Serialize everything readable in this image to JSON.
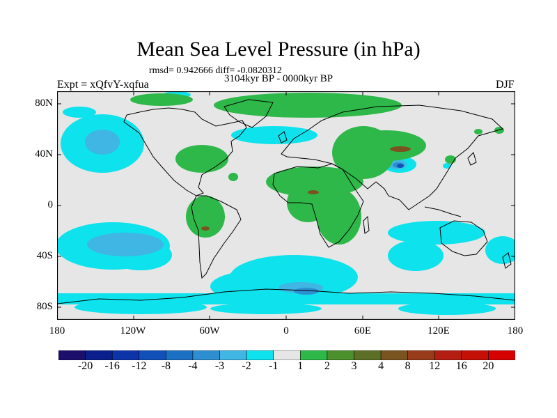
{
  "header": {
    "title": "Mean Sea Level Pressure (in hPa)",
    "stats": "rmsd= 0.942666 diff= -0.0820312",
    "period": "3104kyr BP - 0000kyr BP",
    "experiment": "Expt = xQfvY-xqfua",
    "season": "DJF"
  },
  "axes": {
    "y_ticks": [
      "80N",
      "40N",
      "0",
      "40S",
      "80S"
    ],
    "x_ticks": [
      "180",
      "120W",
      "60W",
      "0",
      "60E",
      "120E",
      "180"
    ]
  },
  "colorbar": {
    "labels": [
      "-20",
      "-16",
      "-12",
      "-8",
      "-4",
      "-3",
      "-2",
      "-1",
      "1",
      "2",
      "3",
      "4",
      "8",
      "12",
      "16",
      "20"
    ],
    "colors": [
      "#1c0f6b",
      "#0a1e8c",
      "#0d33a8",
      "#1150b8",
      "#1c70c4",
      "#2d8fd0",
      "#3fb6e3",
      "#0ee2ed",
      "#e6e6e6",
      "#2fb84a",
      "#4c8f2d",
      "#5d6e26",
      "#7a5420",
      "#973b1a",
      "#b41d12",
      "#c51008",
      "#d60000"
    ]
  },
  "map": {
    "projection": "cylindrical-equidistant",
    "background_color": "#e6e6e6",
    "coastline_color": "#000000"
  }
}
